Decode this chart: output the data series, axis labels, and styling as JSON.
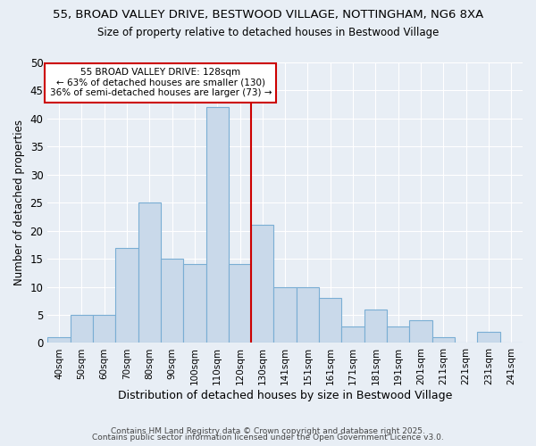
{
  "title_line1": "55, BROAD VALLEY DRIVE, BESTWOOD VILLAGE, NOTTINGHAM, NG6 8XA",
  "title_line2": "Size of property relative to detached houses in Bestwood Village",
  "xlabel": "Distribution of detached houses by size in Bestwood Village",
  "ylabel": "Number of detached properties",
  "categories": [
    "40sqm",
    "50sqm",
    "60sqm",
    "70sqm",
    "80sqm",
    "90sqm",
    "100sqm",
    "110sqm",
    "120sqm",
    "130sqm",
    "141sqm",
    "151sqm",
    "161sqm",
    "171sqm",
    "181sqm",
    "191sqm",
    "201sqm",
    "211sqm",
    "221sqm",
    "231sqm",
    "241sqm"
  ],
  "values": [
    1,
    5,
    5,
    17,
    25,
    15,
    14,
    42,
    14,
    21,
    10,
    10,
    8,
    3,
    6,
    3,
    4,
    1,
    0,
    2,
    0
  ],
  "bar_color": "#c9d9ea",
  "bar_edge_color": "#7aaed4",
  "reference_line_x": 8.5,
  "reference_label": "55 BROAD VALLEY DRIVE: 128sqm",
  "annotation_line2": "← 63% of detached houses are smaller (130)",
  "annotation_line3": "36% of semi-detached houses are larger (73) →",
  "annotation_box_color": "#ffffff",
  "annotation_box_edge": "#cc0000",
  "vline_color": "#cc0000",
  "ylim": [
    0,
    50
  ],
  "yticks": [
    0,
    5,
    10,
    15,
    20,
    25,
    30,
    35,
    40,
    45,
    50
  ],
  "background_color": "#e8eef5",
  "grid_color": "#ffffff",
  "footer_line1": "Contains HM Land Registry data © Crown copyright and database right 2025.",
  "footer_line2": "Contains public sector information licensed under the Open Government Licence v3.0."
}
